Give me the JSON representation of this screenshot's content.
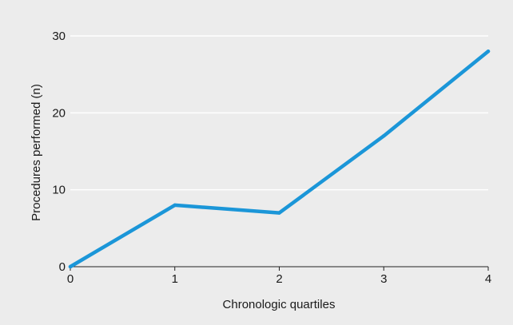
{
  "chart_data": {
    "type": "line",
    "title": "",
    "xlabel": "Chronologic quartiles",
    "ylabel": "Procedures performed (n)",
    "x": [
      0,
      1,
      2,
      3,
      4
    ],
    "series": [
      {
        "values": [
          0,
          8,
          7,
          17,
          28
        ],
        "color": "#1b96d8"
      }
    ],
    "xlim": [
      0,
      4
    ],
    "ylim": [
      0,
      30
    ],
    "xticks": [
      0,
      1,
      2,
      3,
      4
    ],
    "yticks": [
      0,
      10,
      20,
      30
    ],
    "grid": "horizontal",
    "background_color": "#ececec",
    "grid_color": "#ffffff"
  }
}
